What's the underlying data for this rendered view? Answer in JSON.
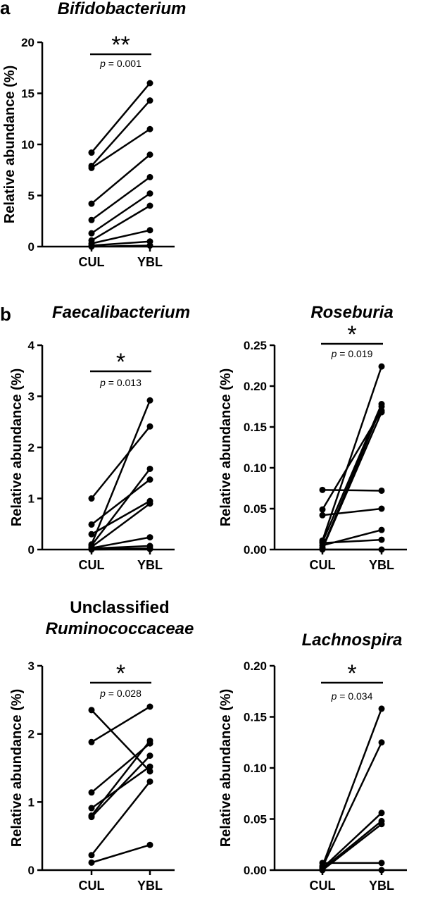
{
  "panel_labels": {
    "a": "a",
    "b": "b"
  },
  "chart_data": [
    {
      "id": "bifido",
      "type": "line",
      "title": "Bifidobacterium",
      "title_italic": true,
      "ylabel": "Relative abundance (%)",
      "categories": [
        "CUL",
        "YBL"
      ],
      "ylim": [
        0,
        20
      ],
      "yticks": [
        "0",
        "5",
        "10",
        "15",
        "20"
      ],
      "significance": "**",
      "p_label": "p",
      "p_value": " = 0.001",
      "pairs": [
        [
          9.2,
          16.0
        ],
        [
          7.9,
          14.3
        ],
        [
          7.7,
          11.5
        ],
        [
          4.2,
          9.0
        ],
        [
          2.6,
          6.8
        ],
        [
          1.3,
          5.2
        ],
        [
          0.6,
          4.0
        ],
        [
          0.3,
          1.6
        ],
        [
          0.1,
          0.5
        ],
        [
          0.0,
          0.1
        ]
      ]
    },
    {
      "id": "faecali",
      "type": "line",
      "title": "Faecalibacterium",
      "title_italic": true,
      "ylabel": "Relative abundance (%)",
      "categories": [
        "CUL",
        "YBL"
      ],
      "ylim": [
        0,
        4
      ],
      "yticks": [
        "0",
        "1",
        "2",
        "3",
        "4"
      ],
      "significance": "*",
      "p_label": "p",
      "p_value": " = 0.013",
      "pairs": [
        [
          1.0,
          2.41
        ],
        [
          0.49,
          1.37
        ],
        [
          0.3,
          0.95
        ],
        [
          0.1,
          2.92
        ],
        [
          0.08,
          1.58
        ],
        [
          0.05,
          0.9
        ],
        [
          0.03,
          0.24
        ],
        [
          0.02,
          0.07
        ],
        [
          0.01,
          0.02
        ],
        [
          0.0,
          0.01
        ]
      ]
    },
    {
      "id": "roseburia",
      "type": "line",
      "title": "Roseburia",
      "title_italic": true,
      "ylabel": "Relative abundance (%)",
      "categories": [
        "CUL",
        "YBL"
      ],
      "ylim": [
        0,
        0.25
      ],
      "yticks": [
        "0.00",
        "0.05",
        "0.10",
        "0.15",
        "0.20",
        "0.25"
      ],
      "significance": "*",
      "p_label": "p",
      "p_value": " = 0.019",
      "pairs": [
        [
          0.073,
          0.072
        ],
        [
          0.049,
          0.17
        ],
        [
          0.042,
          0.05
        ],
        [
          0.011,
          0.224
        ],
        [
          0.009,
          0.178
        ],
        [
          0.008,
          0.012
        ],
        [
          0.005,
          0.024
        ],
        [
          0.002,
          0.175
        ],
        [
          0.001,
          0.168
        ],
        [
          0.0,
          0.0
        ]
      ]
    },
    {
      "id": "unclassified",
      "type": "line",
      "title_lines": [
        "Unclassified",
        "Ruminococcaceae"
      ],
      "title_italic": false,
      "ylabel": "Relative abundance (%)",
      "categories": [
        "CUL",
        "YBL"
      ],
      "ylim": [
        0,
        3
      ],
      "yticks": [
        "0",
        "1",
        "2",
        "3"
      ],
      "significance": "*",
      "p_label": "p",
      "p_value": " = 0.028",
      "pairs": [
        [
          2.35,
          1.45
        ],
        [
          1.88,
          2.4
        ],
        [
          1.14,
          1.86
        ],
        [
          0.91,
          1.52
        ],
        [
          0.8,
          1.9
        ],
        [
          0.78,
          1.68
        ],
        [
          0.22,
          1.3
        ],
        [
          0.11,
          0.37
        ]
      ]
    },
    {
      "id": "lachnospira",
      "type": "line",
      "title": "Lachnospira",
      "title_italic": true,
      "ylabel": "Relative abundance (%)",
      "categories": [
        "CUL",
        "YBL"
      ],
      "ylim": [
        0,
        0.2
      ],
      "yticks": [
        "0.00",
        "0.05",
        "0.10",
        "0.15",
        "0.20"
      ],
      "significance": "*",
      "p_label": "p",
      "p_value": " = 0.034",
      "pairs": [
        [
          0.007,
          0.007
        ],
        [
          0.004,
          0.158
        ],
        [
          0.003,
          0.125
        ],
        [
          0.002,
          0.056
        ],
        [
          0.001,
          0.048
        ],
        [
          0.0,
          0.045
        ],
        [
          0.0,
          0.0
        ]
      ]
    }
  ]
}
